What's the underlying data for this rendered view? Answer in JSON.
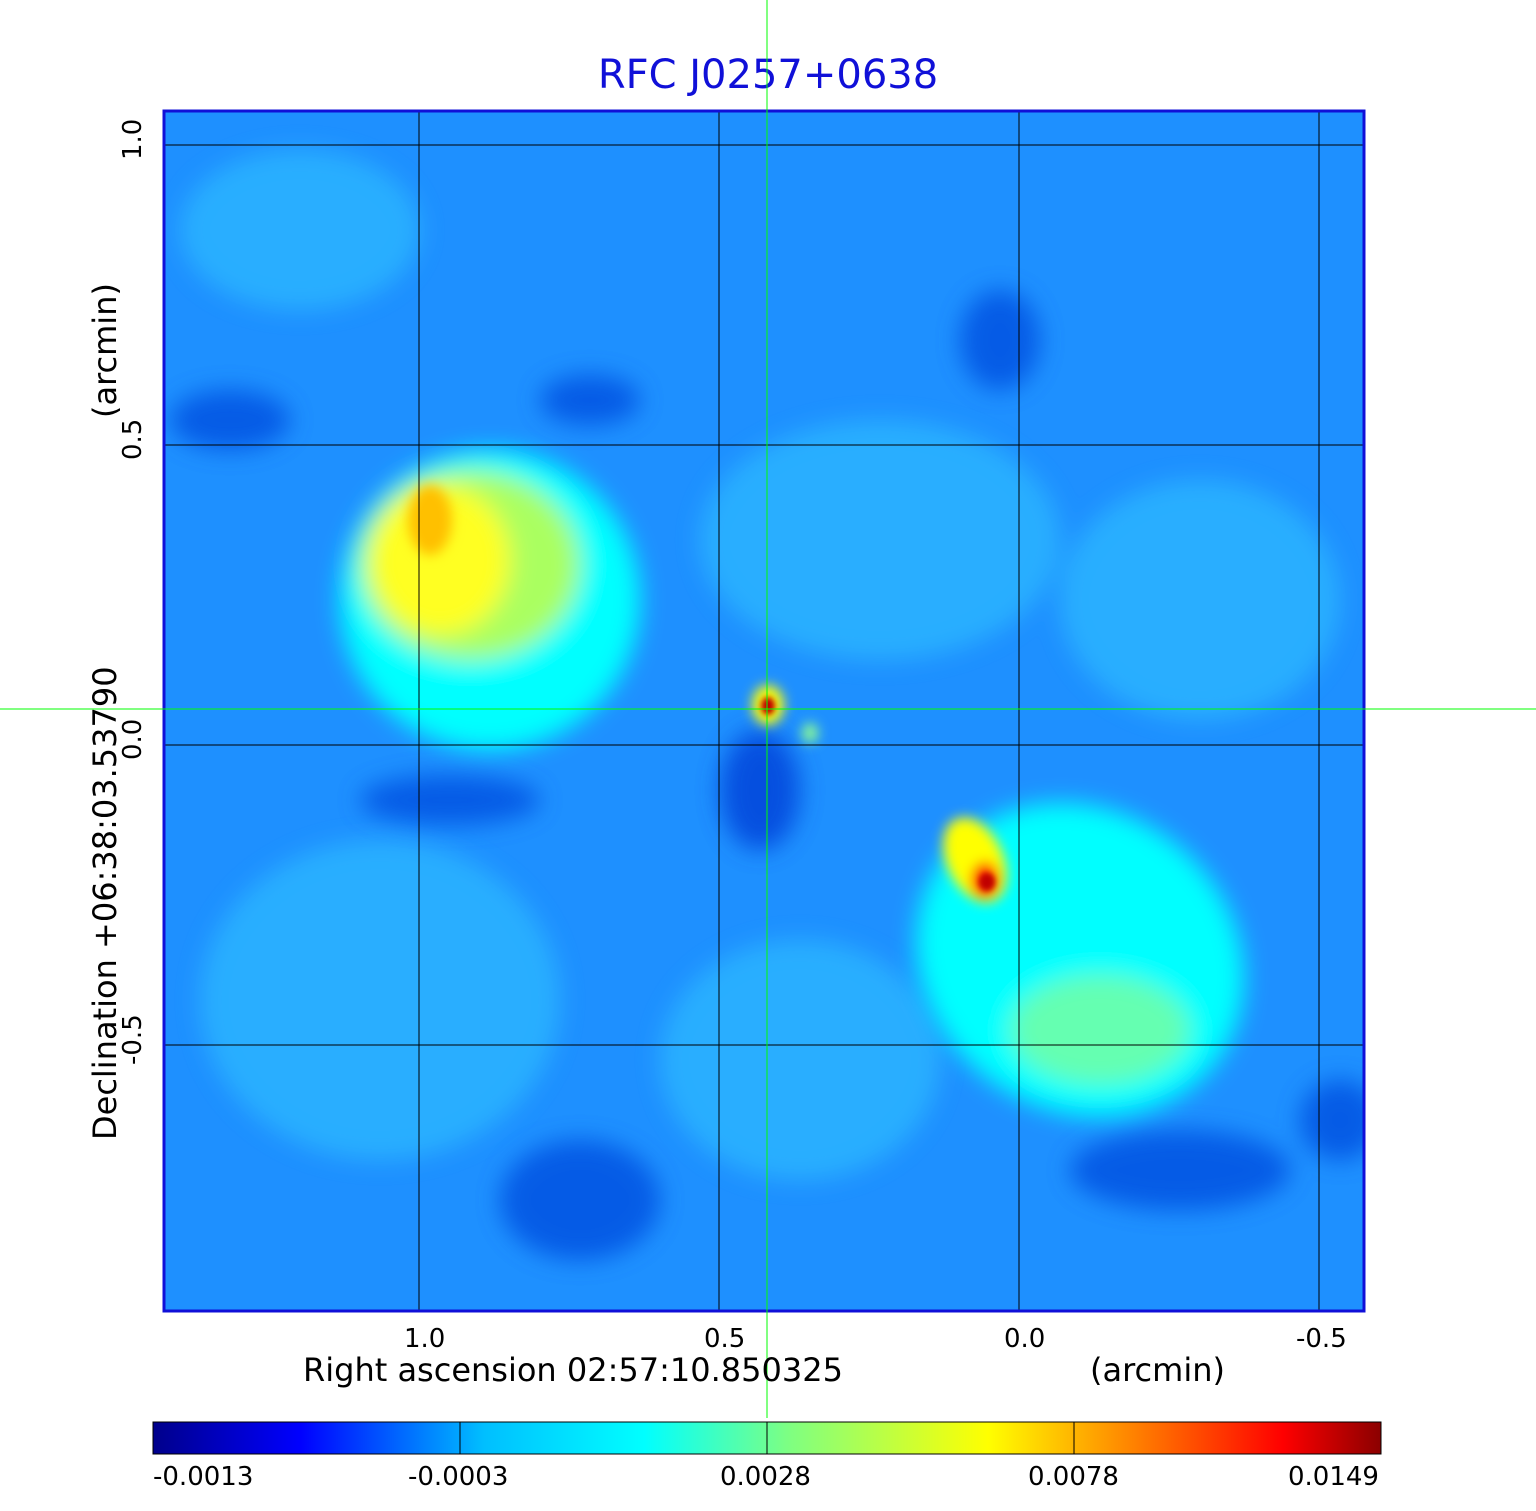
{
  "title": "RFC J0257+0638",
  "x_axis": {
    "label": "Right ascension  02:57:10.850325",
    "unit": "(arcmin)",
    "ticks": [
      "1.0",
      "0.5",
      "0.0",
      "-0.5"
    ]
  },
  "y_axis": {
    "label": "Declination  +06:38:03.53790",
    "unit": "(arcmin)",
    "ticks": [
      "1.0",
      "0.5",
      "0.0",
      "-0.5"
    ]
  },
  "colorbar": {
    "ticks": [
      "-0.0013",
      "-0.0003",
      "0.0028",
      "0.0078",
      "0.0149"
    ],
    "colors": [
      "#00008b",
      "#0000ff",
      "#00bfff",
      "#00ffff",
      "#80ff80",
      "#ffff00",
      "#ff8000",
      "#ff0000",
      "#8b0000"
    ]
  },
  "colors": {
    "frame": "#1010d8",
    "crosshair": "#00ff00",
    "background_map": "#1e90ff"
  }
}
